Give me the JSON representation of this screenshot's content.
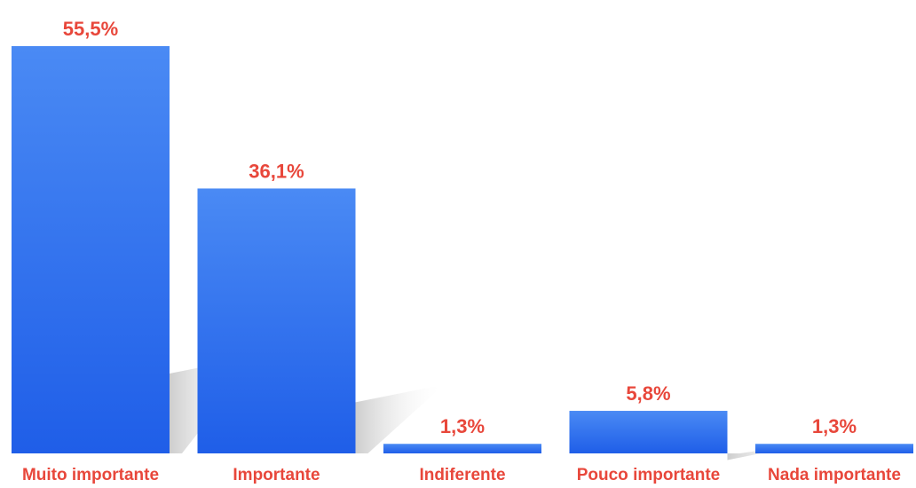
{
  "chart_data": {
    "type": "bar",
    "categories": [
      "Muito importante",
      "Importante",
      "Indiferente",
      "Pouco importante",
      "Nada importante"
    ],
    "values": [
      55.5,
      36.1,
      1.3,
      5.8,
      1.3
    ],
    "value_labels": [
      "55,5%",
      "36,1%",
      "1,3%",
      "5,8%",
      "1,3%"
    ],
    "title": "",
    "xlabel": "",
    "ylabel": "",
    "ylim": [
      0,
      55.5
    ],
    "grid": false,
    "legend": "none",
    "colors": {
      "bar_top": "#4a8af4",
      "bar_bottom": "#1f5ee8",
      "label": "#e8473b",
      "shadow": "#c8c8c8"
    }
  }
}
